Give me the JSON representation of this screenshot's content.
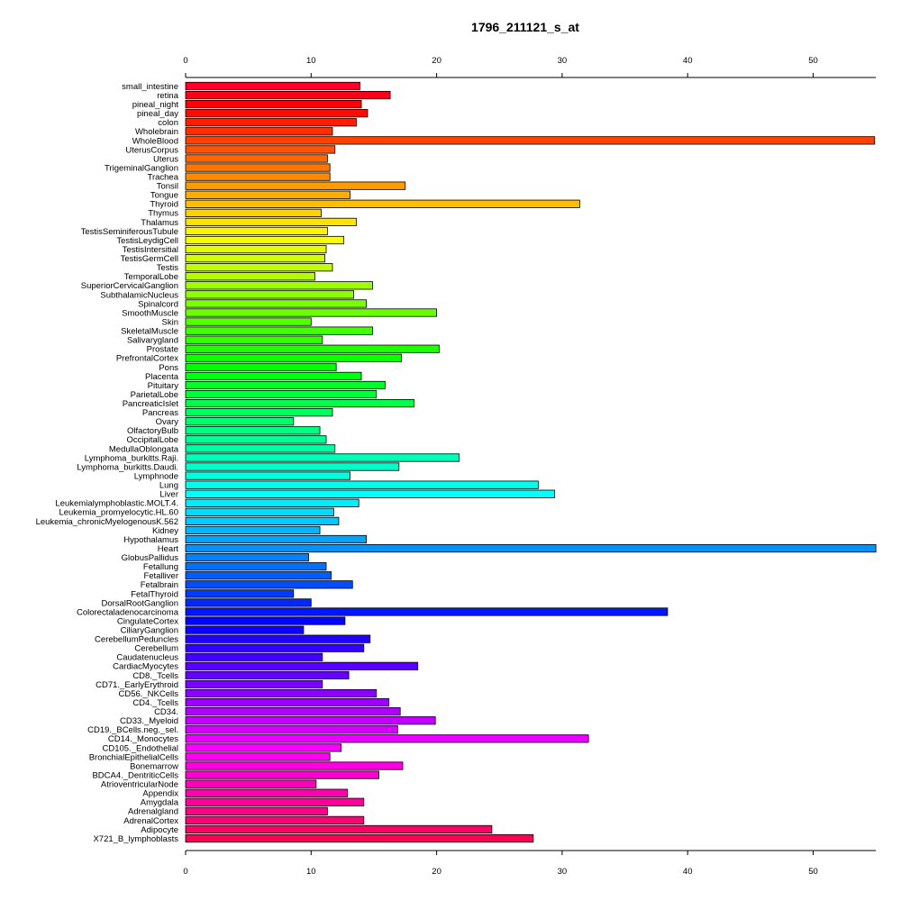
{
  "chart_data": {
    "type": "bar",
    "orientation": "horizontal",
    "title": "1796_211121_s_at",
    "xlabel": "",
    "ylabel": "",
    "xlim": [
      0,
      55
    ],
    "xticks": [
      0,
      10,
      20,
      30,
      40,
      50
    ],
    "grid": false,
    "axes": "top-and-bottom",
    "color_scheme": "rainbow",
    "categories": [
      "small_intestine",
      "retina",
      "pineal_night",
      "pineal_day",
      "colon",
      "Wholebrain",
      "WholeBlood",
      "UterusCorpus",
      "Uterus",
      "TrigeminalGanglion",
      "Trachea",
      "Tonsil",
      "Tongue",
      "Thyroid",
      "Thymus",
      "Thalamus",
      "TestisSeminiferousTubule",
      "TestisLeydigCell",
      "TestisIntersitial",
      "TestisGermCell",
      "Testis",
      "TemporalLobe",
      "SuperiorCervicalGanglion",
      "SubthalamicNucleus",
      "Spinalcord",
      "SmoothMuscle",
      "Skin",
      "SkeletalMuscle",
      "Salivarygland",
      "Prostate",
      "PrefrontalCortex",
      "Pons",
      "Placenta",
      "Pituitary",
      "ParietalLobe",
      "PancreaticIslet",
      "Pancreas",
      "Ovary",
      "OlfactoryBulb",
      "OccipitalLobe",
      "MedullaOblongata",
      "Lymphoma_burkitts.Raji.",
      "Lymphoma_burkitts.Daudi.",
      "Lymphnode",
      "Lung",
      "Liver",
      "Leukemialymphoblastic.MOLT.4.",
      "Leukemia_promyelocytic.HL.60",
      "Leukemia_chronicMyelogenousK.562",
      "Kidney",
      "Hypothalamus",
      "Heart",
      "GlobusPallidus",
      "Fetallung",
      "Fetalliver",
      "Fetalbrain",
      "FetalThyroid",
      "DorsalRootGanglion",
      "Colorectaladenocarcinoma",
      "CingulateCortex",
      "CiliaryGanglion",
      "CerebellumPeduncles",
      "Cerebellum",
      "Caudatenucleus",
      "CardiacMyocytes",
      "CD8._Tcells",
      "CD71._EarlyErythroid",
      "CD56._NKCells",
      "CD4._Tcells",
      "CD34.",
      "CD33._Myeloid",
      "CD19._BCells.neg._sel.",
      "CD14._Monocytes",
      "CD105._Endothelial",
      "BronchialEpithelialCells",
      "Bonemarrow",
      "BDCA4._DentriticCells",
      "AtrioventricularNode",
      "Appendix",
      "Amygdala",
      "Adrenalgland",
      "AdrenalCortex",
      "Adipocyte",
      "X721_B_lymphoblasts"
    ],
    "values": [
      13.9,
      16.3,
      14.0,
      14.5,
      13.6,
      11.7,
      54.9,
      11.9,
      11.3,
      11.5,
      11.5,
      17.5,
      13.1,
      31.4,
      10.8,
      13.6,
      11.3,
      12.6,
      11.2,
      11.1,
      11.7,
      10.3,
      14.9,
      13.4,
      14.4,
      20.0,
      10.0,
      14.9,
      10.9,
      20.2,
      17.2,
      12.0,
      14.0,
      15.9,
      15.2,
      18.2,
      11.7,
      8.6,
      10.7,
      11.2,
      11.9,
      21.8,
      17.0,
      13.1,
      28.1,
      29.4,
      13.8,
      11.8,
      12.2,
      10.7,
      14.4,
      55.0,
      9.8,
      11.2,
      11.6,
      13.3,
      8.6,
      10.0,
      38.4,
      12.7,
      9.4,
      14.7,
      14.2,
      10.9,
      18.5,
      13.0,
      10.9,
      15.2,
      16.2,
      17.1,
      19.9,
      16.9,
      32.1,
      12.4,
      11.5,
      17.3,
      15.4,
      10.4,
      12.9,
      14.2,
      11.3,
      14.2,
      24.4,
      27.7
    ]
  }
}
